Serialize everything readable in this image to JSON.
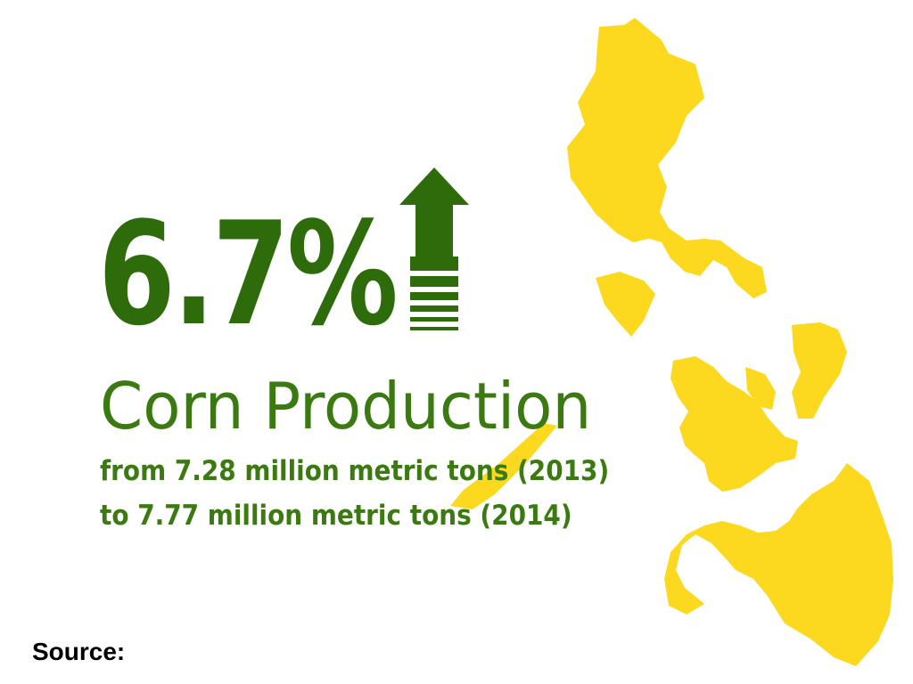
{
  "headline": {
    "value": "6.7%"
  },
  "title": "Corn Production",
  "subtitle": {
    "line1": "from 7.28 million metric tons (2013)",
    "line2": "to 7.77 million metric tons (2014)"
  },
  "source": {
    "label": "Source:"
  },
  "icons": {
    "arrow": "up-arrow-icon",
    "map": "philippines-map"
  },
  "colors": {
    "green": "#2e6b0a",
    "text_green": "#3b7a11",
    "map_yellow": "#fcd91f"
  }
}
